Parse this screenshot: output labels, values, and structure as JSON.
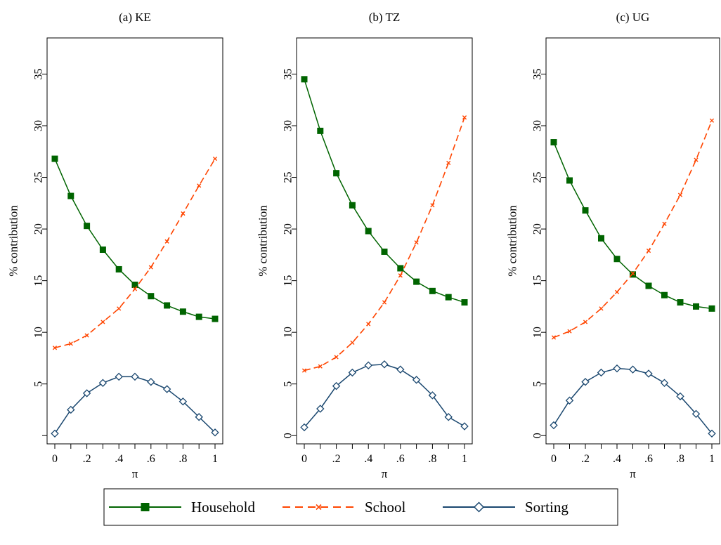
{
  "chart_data": [
    {
      "type": "line",
      "title": "(a) KE",
      "xlabel": "π",
      "ylabel": "% contribution",
      "xlim": [
        0,
        1
      ],
      "ylim": [
        -0.8,
        38.5
      ],
      "xticks": [
        0,
        0.1,
        0.2,
        0.3,
        0.4,
        0.5,
        0.6,
        0.7,
        0.8,
        0.9,
        1
      ],
      "xtick_labels": [
        "0",
        "",
        ".2",
        "",
        ".4",
        "",
        ".6",
        "",
        ".8",
        "",
        "1"
      ],
      "yticks": [
        5,
        10,
        15,
        20,
        25,
        30,
        35
      ],
      "ytick_labels": [
        "5",
        "10",
        "15",
        "20",
        "25",
        "30",
        "35"
      ],
      "extra_ytick": 0,
      "x": [
        0,
        0.1,
        0.2,
        0.3,
        0.4,
        0.5,
        0.6,
        0.7,
        0.8,
        0.9,
        1
      ],
      "series": [
        {
          "name": "Household",
          "values": [
            26.8,
            23.2,
            20.3,
            18.0,
            16.1,
            14.6,
            13.5,
            12.6,
            12.0,
            11.5,
            11.3
          ]
        },
        {
          "name": "School",
          "values": [
            8.5,
            8.9,
            9.7,
            11.0,
            12.3,
            14.2,
            16.3,
            18.8,
            21.5,
            24.2,
            26.8
          ]
        },
        {
          "name": "Sorting",
          "values": [
            0.2,
            2.5,
            4.1,
            5.1,
            5.7,
            5.7,
            5.2,
            4.5,
            3.3,
            1.8,
            0.3
          ]
        }
      ]
    },
    {
      "type": "line",
      "title": "(b) TZ",
      "xlabel": "π",
      "ylabel": "% contribution",
      "xlim": [
        0,
        1
      ],
      "ylim": [
        -0.8,
        38.5
      ],
      "xticks": [
        0,
        0.1,
        0.2,
        0.3,
        0.4,
        0.5,
        0.6,
        0.7,
        0.8,
        0.9,
        1
      ],
      "xtick_labels": [
        "0",
        "",
        ".2",
        "",
        ".4",
        "",
        ".6",
        "",
        ".8",
        "",
        "1"
      ],
      "yticks": [
        0,
        5,
        10,
        15,
        20,
        25,
        30,
        35
      ],
      "ytick_labels": [
        "0",
        "5",
        "10",
        "15",
        "20",
        "25",
        "30",
        "35"
      ],
      "x": [
        0,
        0.1,
        0.2,
        0.3,
        0.4,
        0.5,
        0.6,
        0.7,
        0.8,
        0.9,
        1
      ],
      "series": [
        {
          "name": "Household",
          "values": [
            34.5,
            29.5,
            25.4,
            22.3,
            19.8,
            17.8,
            16.2,
            14.9,
            14.0,
            13.4,
            12.9
          ]
        },
        {
          "name": "School",
          "values": [
            6.3,
            6.7,
            7.6,
            9.0,
            10.8,
            12.9,
            15.5,
            18.7,
            22.3,
            26.4,
            30.8
          ]
        },
        {
          "name": "Sorting",
          "values": [
            0.8,
            2.6,
            4.8,
            6.1,
            6.8,
            6.9,
            6.4,
            5.4,
            3.9,
            1.8,
            0.9
          ]
        }
      ]
    },
    {
      "type": "line",
      "title": "(c) UG",
      "xlabel": "π",
      "ylabel": "% contribution",
      "xlim": [
        0,
        1
      ],
      "ylim": [
        -0.8,
        38.5
      ],
      "xticks": [
        0,
        0.1,
        0.2,
        0.3,
        0.4,
        0.5,
        0.6,
        0.7,
        0.8,
        0.9,
        1
      ],
      "xtick_labels": [
        "0",
        "",
        ".2",
        "",
        ".4",
        "",
        ".6",
        "",
        ".8",
        "",
        "1"
      ],
      "yticks": [
        0,
        5,
        10,
        15,
        20,
        25,
        30,
        35
      ],
      "ytick_labels": [
        "0",
        "5",
        "10",
        "15",
        "20",
        "25",
        "30",
        "35"
      ],
      "x": [
        0,
        0.1,
        0.2,
        0.3,
        0.4,
        0.5,
        0.6,
        0.7,
        0.8,
        0.9,
        1
      ],
      "series": [
        {
          "name": "Household",
          "values": [
            28.4,
            24.7,
            21.8,
            19.1,
            17.1,
            15.6,
            14.5,
            13.6,
            12.9,
            12.5,
            12.3
          ]
        },
        {
          "name": "School",
          "values": [
            9.5,
            10.1,
            11.0,
            12.3,
            13.9,
            15.7,
            17.9,
            20.5,
            23.3,
            26.7,
            30.5
          ]
        },
        {
          "name": "Sorting",
          "values": [
            1.0,
            3.4,
            5.2,
            6.1,
            6.5,
            6.4,
            6.0,
            5.1,
            3.8,
            2.1,
            0.2
          ]
        }
      ]
    }
  ],
  "legend": {
    "placement": "bottom",
    "items": [
      {
        "name": "Household",
        "color": "#006400",
        "marker": "filled-square",
        "line": "solid"
      },
      {
        "name": "School",
        "color": "#ff4500",
        "marker": "x",
        "line": "dashed"
      },
      {
        "name": "Sorting",
        "color": "#1a476f",
        "marker": "hollow-diamond",
        "line": "solid"
      }
    ]
  }
}
